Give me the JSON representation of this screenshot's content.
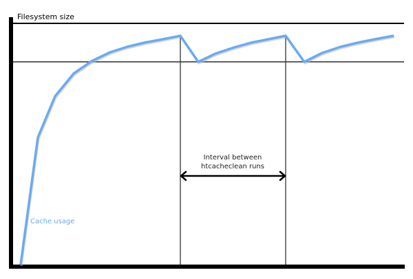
{
  "labels": {
    "y_axis": "Filesystem size",
    "curve": "Cache usage",
    "interval_line1": "Interval between",
    "interval_line2": "htcacheclean runs"
  },
  "colors": {
    "curve": "#6aaaf2",
    "axes": "#000000",
    "curve_label": "#6aaaf2"
  }
}
